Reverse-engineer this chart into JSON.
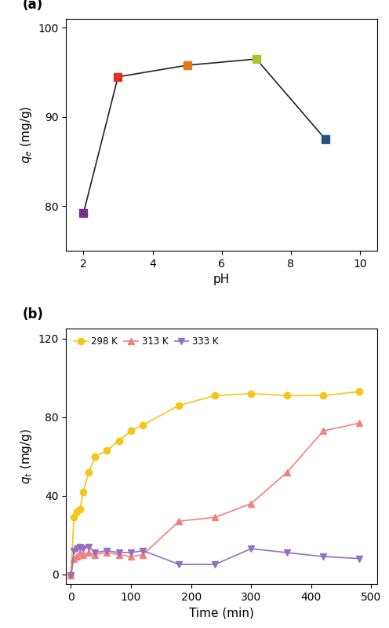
{
  "panel_a": {
    "ph_x": [
      2,
      3,
      5,
      7,
      9
    ],
    "qe_y": [
      79.2,
      94.5,
      95.8,
      96.5,
      87.5
    ],
    "marker_colors": [
      "#7B2D8B",
      "#E03020",
      "#E07820",
      "#A8C030",
      "#2A5080"
    ],
    "marker": "s",
    "marker_size": 7,
    "line_color": "#222222",
    "xlabel": "pH",
    "ylabel": "$q_e$ (mg/g)",
    "xlim": [
      1.5,
      10.5
    ],
    "ylim": [
      75,
      101
    ],
    "yticks": [
      80,
      90,
      100
    ],
    "xticks": [
      2,
      4,
      6,
      8,
      10
    ]
  },
  "panel_b": {
    "series_298K": {
      "time": [
        0,
        5,
        10,
        15,
        20,
        30,
        40,
        60,
        80,
        100,
        120,
        180,
        240,
        300,
        360,
        420,
        480
      ],
      "qt": [
        0,
        29,
        32,
        33,
        42,
        52,
        60,
        63,
        68,
        73,
        76,
        86,
        91,
        92,
        91,
        91,
        93
      ],
      "color": "#F5C518",
      "linestyle": "-",
      "marker": "o",
      "marker_size": 6,
      "label": "298 K"
    },
    "series_313K": {
      "time": [
        0,
        5,
        10,
        15,
        20,
        30,
        40,
        60,
        80,
        100,
        120,
        180,
        240,
        300,
        360,
        420,
        480
      ],
      "qt": [
        -0.5,
        8,
        9,
        11,
        10,
        11,
        10,
        11,
        10,
        9,
        10,
        27,
        29,
        36,
        52,
        73,
        77
      ],
      "color": "#F08080",
      "linestyle": "-",
      "marker": "^",
      "marker_size": 6,
      "label": "313 K"
    },
    "series_333K": {
      "time": [
        0,
        5,
        10,
        15,
        20,
        30,
        40,
        60,
        80,
        100,
        120,
        180,
        240,
        300,
        360,
        420,
        480
      ],
      "qt": [
        -0.5,
        12,
        13,
        14,
        13,
        14,
        11,
        12,
        11,
        11,
        12,
        5,
        5,
        13,
        11,
        9,
        8
      ],
      "color": "#9370C0",
      "linestyle": "-",
      "marker": "v",
      "marker_size": 6,
      "label": "333 K"
    },
    "xlabel": "Time (min)",
    "ylabel": "$q_t$ (mg/g)",
    "xlim": [
      -8,
      510
    ],
    "ylim": [
      -5,
      125
    ],
    "yticks": [
      0,
      40,
      80,
      120
    ],
    "xticks": [
      0,
      100,
      200,
      300,
      400,
      500
    ]
  },
  "bg_color": "#FFFFFF",
  "label_fontsize": 11,
  "tick_fontsize": 10,
  "panel_label_fontsize": 12
}
